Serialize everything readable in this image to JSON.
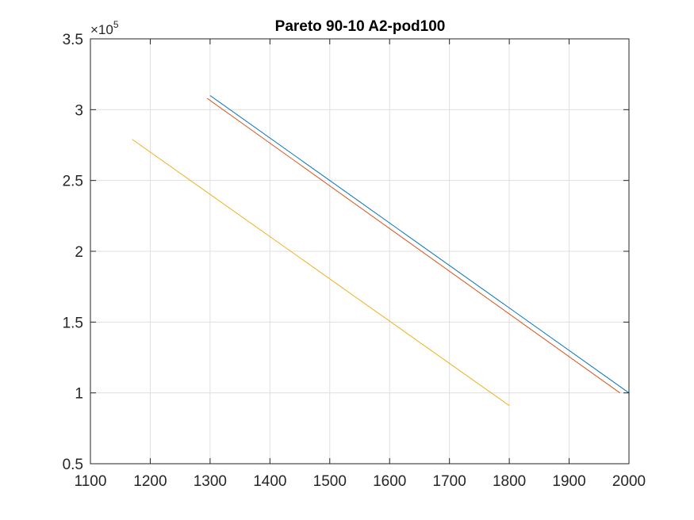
{
  "chart_data": {
    "type": "line",
    "title": "Pareto 90-10 A2-pod100",
    "xlabel": "",
    "ylabel": "",
    "xlim": [
      1100,
      2000
    ],
    "ylim": [
      50000,
      350000
    ],
    "xticks": [
      "1100",
      "1200",
      "1300",
      "1400",
      "1500",
      "1600",
      "1700",
      "1800",
      "1900",
      "2000"
    ],
    "yticks": [
      "0.5",
      "1",
      "1.5",
      "2",
      "2.5",
      "3",
      "3.5"
    ],
    "y_exponent": {
      "base": "×10",
      "power": "5"
    },
    "grid": true,
    "series": [
      {
        "color": "#0072BD",
        "x": [
          1300,
          2000
        ],
        "y": [
          310000,
          100000
        ]
      },
      {
        "color": "#D95319",
        "x": [
          1295,
          1985
        ],
        "y": [
          308000,
          100000
        ]
      },
      {
        "color": "#EDB120",
        "x": [
          1170,
          1800
        ],
        "y": [
          279000,
          91000
        ]
      }
    ]
  }
}
